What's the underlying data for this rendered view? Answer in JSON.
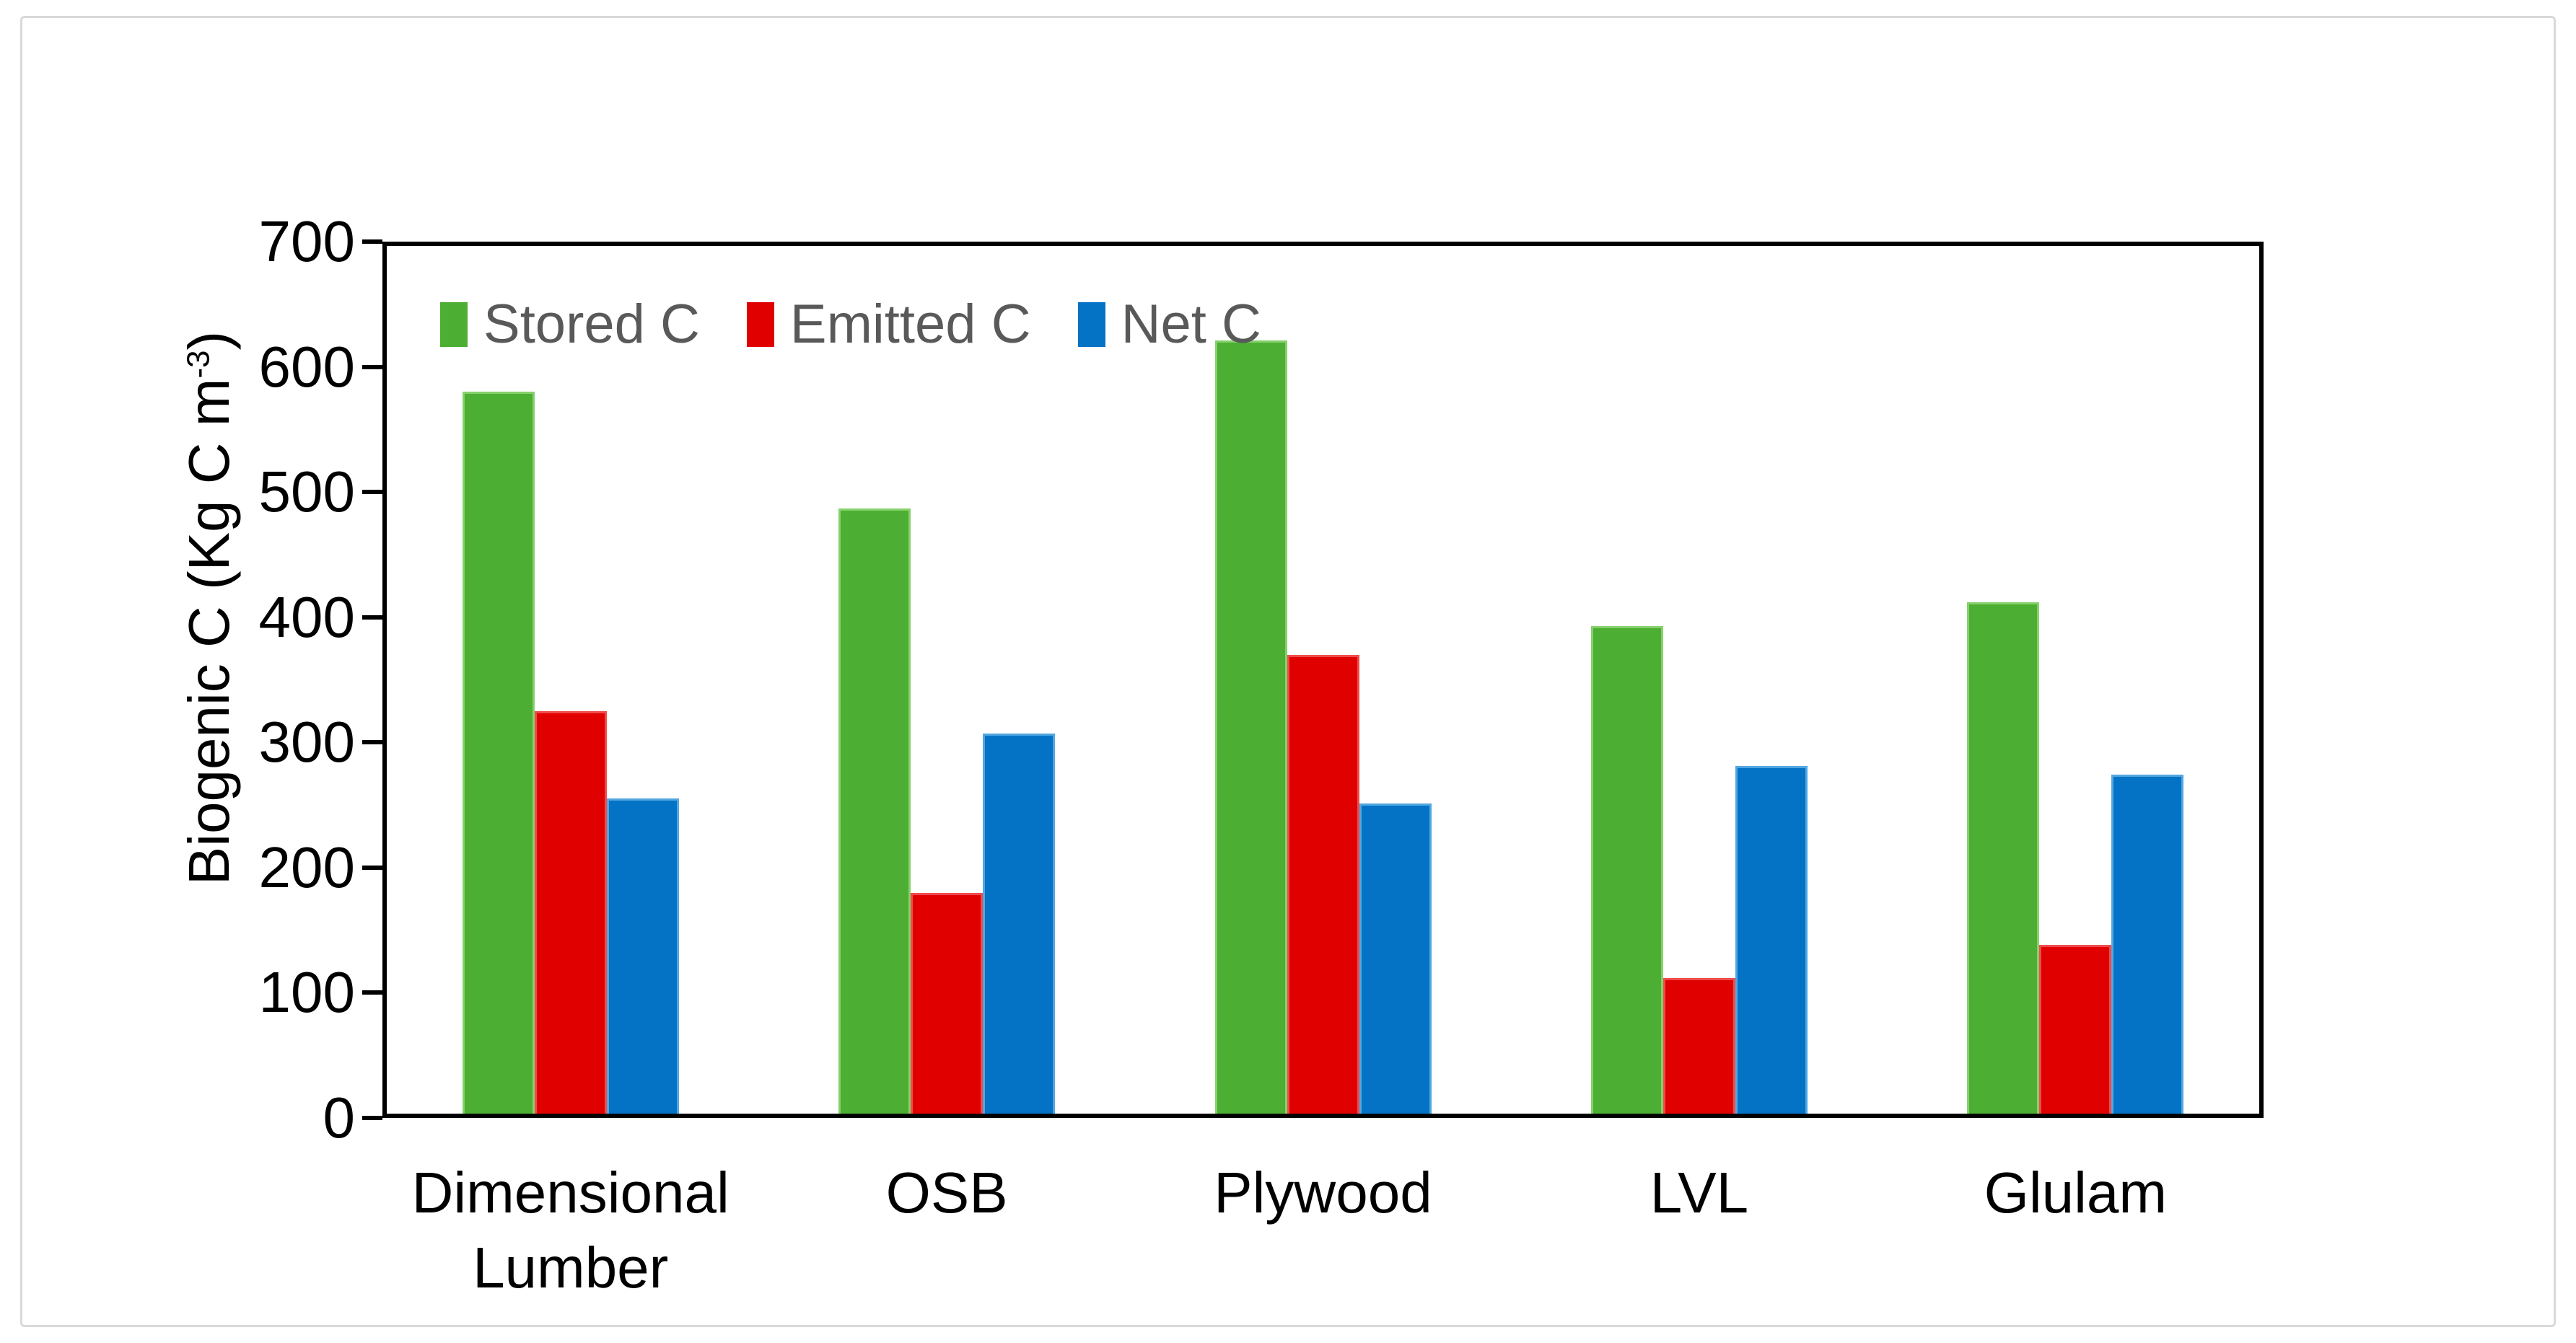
{
  "figure": {
    "background": "#FFFFFF",
    "frame_border_color": "#D9D9D9"
  },
  "y_axis": {
    "title_prefix": "Biogenic C (Kg C m",
    "title_sup": "-3",
    "title_suffix": ")"
  },
  "chart_data": {
    "type": "bar",
    "title": "",
    "categories": [
      "Dimensional Lumber",
      "OSB",
      "Plywood",
      "LVL",
      "Glulam"
    ],
    "series": [
      {
        "name": "Stored C",
        "color": "#4CAE32",
        "edge": "#86D16C",
        "values": [
          580,
          487,
          621,
          393,
          412
        ]
      },
      {
        "name": "Emitted C",
        "color": "#E00000",
        "edge": "#F04B4B",
        "values": [
          325,
          180,
          370,
          112,
          138
        ]
      },
      {
        "name": "Net C",
        "color": "#0473C6",
        "edge": "#51A7E0",
        "values": [
          255,
          307,
          251,
          281,
          274
        ]
      }
    ],
    "xlabel": "",
    "ylabel": "Biogenic C (Kg C m⁻³)",
    "ylim": [
      0,
      700
    ],
    "ytick_step": 100,
    "grid": false,
    "legend_position": "top-left-inside",
    "axis_color": "#000000",
    "tick_label_color": "#000000",
    "legend_text_color": "#595959"
  }
}
